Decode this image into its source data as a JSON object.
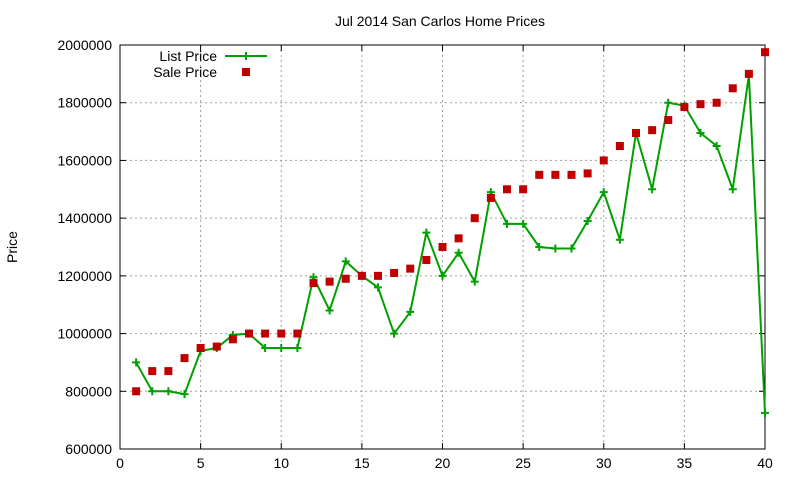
{
  "chart_data": {
    "type": "line",
    "title": "Jul 2014 San Carlos Home Prices",
    "xlabel": "",
    "ylabel": "Price",
    "xlim": [
      0,
      40
    ],
    "ylim": [
      600000,
      2000000
    ],
    "xticks": [
      0,
      5,
      10,
      15,
      20,
      25,
      30,
      35,
      40
    ],
    "yticks": [
      600000,
      800000,
      1000000,
      1200000,
      1400000,
      1600000,
      1800000,
      2000000
    ],
    "xtick_labels": [
      "0",
      "5",
      "10",
      "15",
      "20",
      "25",
      "30",
      "35",
      "40"
    ],
    "ytick_labels": [
      "600000",
      "800000",
      "1000000",
      "1200000",
      "1400000",
      "1600000",
      "1800000",
      "2000000"
    ],
    "grid": true,
    "legend_position": "top-left",
    "x": [
      1,
      2,
      3,
      4,
      5,
      6,
      7,
      8,
      9,
      10,
      11,
      12,
      13,
      14,
      15,
      16,
      17,
      18,
      19,
      20,
      21,
      22,
      23,
      24,
      25,
      26,
      27,
      28,
      29,
      30,
      31,
      32,
      33,
      34,
      35,
      36,
      37,
      38,
      39,
      40
    ],
    "series": [
      {
        "name": "List Price",
        "style": "linespoints",
        "color": "#00a000",
        "values": [
          900000,
          800000,
          800000,
          790000,
          940000,
          950000,
          995000,
          1000000,
          950000,
          950000,
          950000,
          1195000,
          1080000,
          1250000,
          1200000,
          1160000,
          1000000,
          1075000,
          1350000,
          1200000,
          1280000,
          1180000,
          1490000,
          1380000,
          1380000,
          1300000,
          1295000,
          1295000,
          1390000,
          1490000,
          1325000,
          1695000,
          1500000,
          1800000,
          1790000,
          1695000,
          1650000,
          1500000,
          1895000,
          725000
        ]
      },
      {
        "name": "Sale Price",
        "style": "points",
        "color": "#c00000",
        "values": [
          800000,
          870000,
          870000,
          915000,
          950000,
          955000,
          980000,
          1000000,
          1000000,
          1000000,
          1000000,
          1175000,
          1180000,
          1190000,
          1200000,
          1200000,
          1210000,
          1225000,
          1255000,
          1300000,
          1330000,
          1400000,
          1470000,
          1500000,
          1500000,
          1550000,
          1550000,
          1550000,
          1555000,
          1600000,
          1650000,
          1695000,
          1705000,
          1740000,
          1785000,
          1795000,
          1800000,
          1850000,
          1900000,
          1975000
        ]
      }
    ]
  }
}
